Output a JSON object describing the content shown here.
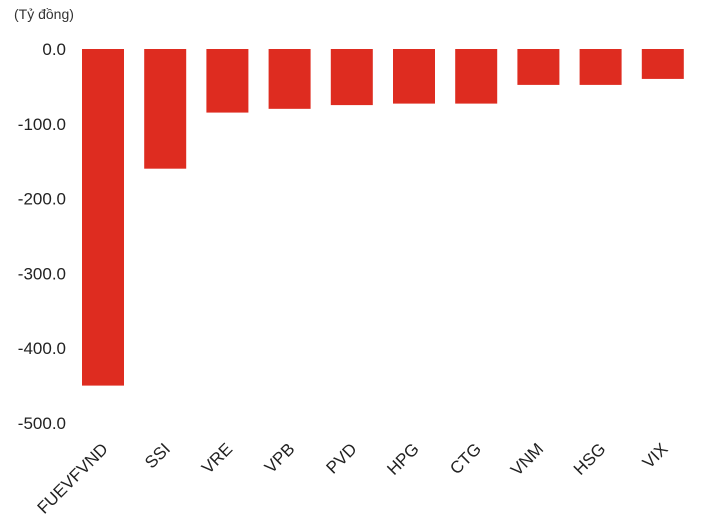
{
  "chart_data": {
    "type": "bar",
    "unit_label": "(Tỷ đồng)",
    "categories": [
      "FUEVFVND",
      "SSI",
      "VRE",
      "VPB",
      "PVD",
      "HPG",
      "CTG",
      "VNM",
      "HSG",
      "VIX"
    ],
    "values": [
      -450,
      -160,
      -85,
      -80,
      -75,
      -73,
      -73,
      -48,
      -48,
      -40
    ],
    "ylim": [
      -500,
      0
    ],
    "yticks": [
      "0.0",
      "-100.0",
      "-200.0",
      "-300.0",
      "-400.0",
      "-500.0"
    ],
    "ytick_values": [
      0,
      -100,
      -200,
      -300,
      -400,
      -500
    ],
    "bar_color": "#de2c20",
    "grid": false,
    "legend": "none"
  }
}
